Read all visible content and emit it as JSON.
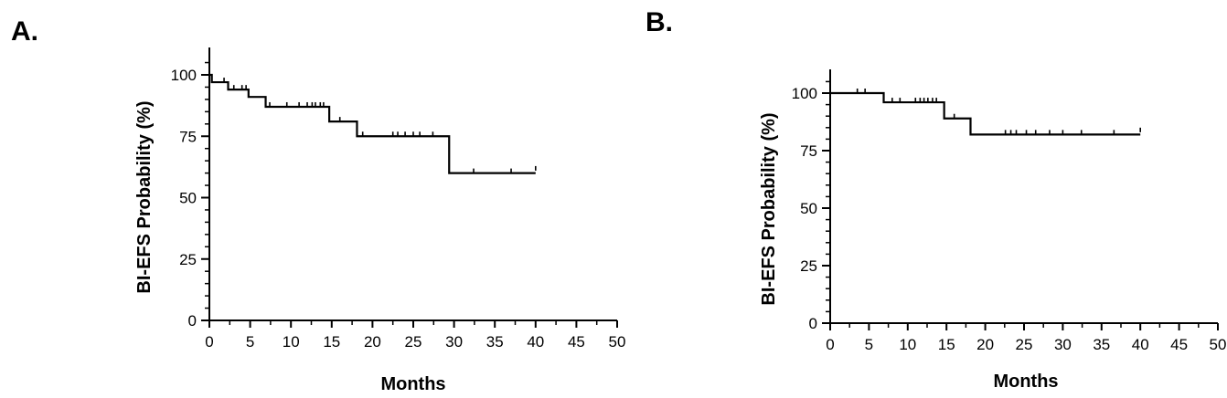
{
  "chart_data": [
    {
      "panel_label": "A.",
      "type": "line",
      "step": true,
      "xlabel": "Months",
      "ylabel": "BI-EFS Probability (%)",
      "xlim": [
        0,
        50
      ],
      "ylim": [
        0,
        100
      ],
      "xticks": [
        0,
        5,
        10,
        15,
        20,
        25,
        30,
        35,
        40,
        45,
        50
      ],
      "yticks": [
        0,
        25,
        50,
        75,
        100
      ],
      "series": [
        {
          "steps": [
            [
              0,
              100
            ],
            [
              0.3,
              97
            ],
            [
              2.3,
              94
            ],
            [
              4.8,
              91
            ],
            [
              6.9,
              87
            ],
            [
              14.7,
              81
            ],
            [
              18.1,
              75
            ],
            [
              29.4,
              60
            ],
            [
              40,
              60
            ]
          ],
          "censored": [
            [
              1.8,
              97
            ],
            [
              3,
              94
            ],
            [
              4,
              94
            ],
            [
              4.5,
              94
            ],
            [
              7.4,
              87
            ],
            [
              9.5,
              87
            ],
            [
              11,
              87
            ],
            [
              12,
              87
            ],
            [
              12.6,
              87
            ],
            [
              13,
              87
            ],
            [
              13.6,
              87
            ],
            [
              14,
              87
            ],
            [
              16,
              81
            ],
            [
              18.8,
              75
            ],
            [
              22.5,
              75
            ],
            [
              23.1,
              75
            ],
            [
              24,
              75
            ],
            [
              25,
              75
            ],
            [
              25.8,
              75
            ],
            [
              27.4,
              75
            ],
            [
              32.4,
              60
            ],
            [
              37,
              60
            ],
            [
              40,
              61
            ]
          ]
        }
      ],
      "grid": false
    },
    {
      "panel_label": "B.",
      "type": "line",
      "step": true,
      "xlabel": "Months",
      "ylabel": "BI-EFS Probability (%)",
      "xlim": [
        0,
        50
      ],
      "ylim": [
        0,
        100
      ],
      "xticks": [
        0,
        5,
        10,
        15,
        20,
        25,
        30,
        35,
        40,
        45,
        50
      ],
      "yticks": [
        0,
        25,
        50,
        75,
        100
      ],
      "series": [
        {
          "steps": [
            [
              0,
              100
            ],
            [
              6.9,
              96
            ],
            [
              14.7,
              89
            ],
            [
              18.1,
              82
            ],
            [
              40,
              82
            ]
          ],
          "censored": [
            [
              3.5,
              100
            ],
            [
              4.5,
              100
            ],
            [
              8,
              96
            ],
            [
              9,
              96
            ],
            [
              11,
              96
            ],
            [
              11.6,
              96
            ],
            [
              12.1,
              96
            ],
            [
              12.6,
              96
            ],
            [
              13.2,
              96
            ],
            [
              13.7,
              96
            ],
            [
              16,
              89
            ],
            [
              22.6,
              82
            ],
            [
              23.3,
              82
            ],
            [
              24,
              82
            ],
            [
              25.3,
              82
            ],
            [
              26.5,
              82
            ],
            [
              28.3,
              82
            ],
            [
              30,
              82
            ],
            [
              32.4,
              82
            ],
            [
              36.6,
              82
            ],
            [
              40,
              83
            ]
          ]
        }
      ],
      "grid": false
    }
  ]
}
